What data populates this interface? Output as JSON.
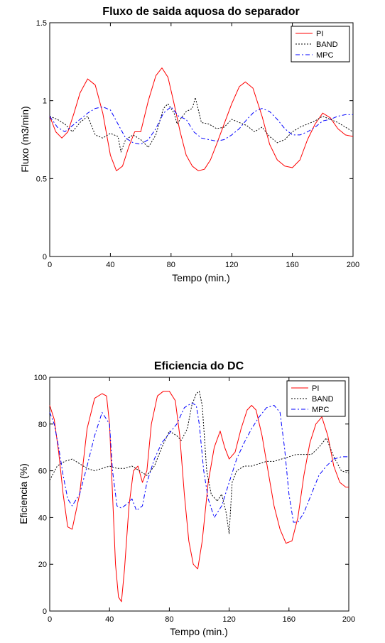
{
  "chart_data": [
    {
      "type": "line",
      "title": "Fluxo de saida aquosa do separador",
      "xlabel": "Tempo (min.)",
      "ylabel": "Fluxo (m3/min)",
      "xlim": [
        0,
        200
      ],
      "ylim": [
        0,
        1.5
      ],
      "xticks": [
        0,
        40,
        80,
        120,
        160,
        200
      ],
      "yticks": [
        0,
        0.5,
        1,
        1.5
      ],
      "xtick_labels": [
        "0",
        "40",
        "80",
        "120",
        "160",
        "200"
      ],
      "ytick_labels": [
        "0",
        "0.5",
        "1",
        "1.5"
      ],
      "grid": false,
      "legend": "top-right",
      "series": [
        {
          "name": "PI",
          "color": "#ff0000",
          "style": "solid",
          "x": [
            0,
            4,
            8,
            12,
            16,
            20,
            25,
            30,
            35,
            40,
            44,
            48,
            52,
            56,
            60,
            65,
            70,
            74,
            78,
            82,
            86,
            90,
            94,
            98,
            102,
            106,
            110,
            115,
            120,
            125,
            129,
            134,
            140,
            145,
            150,
            155,
            160,
            165,
            170,
            175,
            180,
            185,
            190,
            195,
            200
          ],
          "y": [
            0.9,
            0.8,
            0.76,
            0.8,
            0.92,
            1.05,
            1.14,
            1.1,
            0.92,
            0.65,
            0.55,
            0.58,
            0.7,
            0.8,
            0.8,
            1.0,
            1.16,
            1.21,
            1.15,
            0.98,
            0.8,
            0.65,
            0.58,
            0.55,
            0.56,
            0.62,
            0.72,
            0.85,
            0.98,
            1.09,
            1.12,
            1.08,
            0.9,
            0.72,
            0.62,
            0.58,
            0.57,
            0.62,
            0.75,
            0.85,
            0.92,
            0.89,
            0.82,
            0.78,
            0.77
          ]
        },
        {
          "name": "BAND",
          "color": "#000000",
          "style": "dotted",
          "x": [
            0,
            5,
            10,
            15,
            20,
            25,
            30,
            35,
            40,
            45,
            47,
            50,
            55,
            60,
            65,
            70,
            75,
            78,
            82,
            84,
            86,
            90,
            94,
            96,
            100,
            105,
            110,
            115,
            120,
            125,
            130,
            135,
            140,
            145,
            150,
            155,
            160,
            165,
            170,
            175,
            180,
            185,
            190,
            195,
            200
          ],
          "y": [
            0.9,
            0.88,
            0.85,
            0.8,
            0.86,
            0.9,
            0.78,
            0.76,
            0.79,
            0.77,
            0.67,
            0.75,
            0.78,
            0.75,
            0.7,
            0.78,
            0.95,
            0.98,
            0.92,
            0.85,
            0.88,
            0.93,
            0.95,
            1.02,
            0.86,
            0.85,
            0.82,
            0.83,
            0.88,
            0.86,
            0.84,
            0.8,
            0.83,
            0.77,
            0.73,
            0.75,
            0.8,
            0.83,
            0.85,
            0.87,
            0.9,
            0.88,
            0.86,
            0.83,
            0.8
          ]
        },
        {
          "name": "MPC",
          "color": "#0000ff",
          "style": "dashdot",
          "x": [
            0,
            5,
            10,
            15,
            20,
            25,
            30,
            35,
            40,
            45,
            50,
            55,
            60,
            65,
            70,
            75,
            80,
            85,
            90,
            95,
            100,
            105,
            110,
            115,
            120,
            125,
            130,
            135,
            140,
            145,
            150,
            155,
            160,
            165,
            170,
            175,
            180,
            185,
            190,
            195,
            200
          ],
          "y": [
            0.9,
            0.83,
            0.8,
            0.84,
            0.88,
            0.92,
            0.95,
            0.96,
            0.94,
            0.85,
            0.76,
            0.73,
            0.72,
            0.75,
            0.82,
            0.92,
            0.96,
            0.9,
            0.88,
            0.8,
            0.76,
            0.75,
            0.74,
            0.75,
            0.78,
            0.82,
            0.88,
            0.93,
            0.95,
            0.93,
            0.88,
            0.82,
            0.78,
            0.78,
            0.8,
            0.83,
            0.87,
            0.88,
            0.9,
            0.91,
            0.91
          ]
        }
      ]
    },
    {
      "type": "line",
      "title": "Eficiencia do DC",
      "xlabel": "Tempo (min.)",
      "ylabel": "Eficiencia (%)",
      "xlim": [
        0,
        200
      ],
      "ylim": [
        0,
        100
      ],
      "xticks": [
        0,
        40,
        80,
        120,
        160,
        200
      ],
      "yticks": [
        0,
        20,
        40,
        60,
        80,
        100
      ],
      "xtick_labels": [
        "0",
        "40",
        "80",
        "120",
        "160",
        "200"
      ],
      "ytick_labels": [
        "0",
        "20",
        "40",
        "60",
        "80",
        "100"
      ],
      "grid": false,
      "legend": "top-right",
      "series": [
        {
          "name": "PI",
          "color": "#ff0000",
          "style": "solid",
          "x": [
            0,
            3,
            6,
            9,
            12,
            15,
            20,
            25,
            30,
            35,
            38,
            40,
            42,
            44,
            46,
            48,
            50,
            53,
            56,
            59,
            62,
            65,
            68,
            72,
            76,
            80,
            84,
            87,
            90,
            93,
            96,
            99,
            102,
            106,
            110,
            114,
            117,
            120,
            124,
            128,
            132,
            135,
            138,
            142,
            146,
            150,
            154,
            158,
            162,
            166,
            170,
            174,
            178,
            182,
            186,
            190,
            194,
            198,
            200
          ],
          "y": [
            88,
            82,
            68,
            50,
            36,
            35,
            50,
            78,
            91,
            93,
            92,
            80,
            50,
            20,
            6,
            4,
            18,
            45,
            60,
            62,
            55,
            60,
            80,
            92,
            94,
            94,
            90,
            75,
            50,
            30,
            20,
            18,
            30,
            55,
            70,
            77,
            70,
            65,
            68,
            78,
            86,
            88,
            86,
            75,
            60,
            45,
            35,
            29,
            30,
            40,
            58,
            72,
            80,
            83,
            75,
            62,
            55,
            53,
            53
          ]
        },
        {
          "name": "BAND",
          "color": "#000000",
          "style": "dotted",
          "x": [
            0,
            5,
            10,
            15,
            20,
            25,
            30,
            35,
            40,
            45,
            50,
            55,
            60,
            65,
            70,
            75,
            80,
            85,
            88,
            92,
            95,
            98,
            100,
            102,
            105,
            108,
            112,
            115,
            118,
            120,
            122,
            125,
            130,
            135,
            140,
            145,
            150,
            155,
            160,
            165,
            170,
            175,
            180,
            185,
            190,
            195,
            200
          ],
          "y": [
            56,
            62,
            64,
            65,
            63,
            61,
            60,
            61,
            62,
            61,
            61,
            62,
            60,
            58,
            62,
            70,
            77,
            75,
            73,
            78,
            88,
            93,
            94,
            88,
            60,
            50,
            47,
            50,
            42,
            33,
            55,
            60,
            62,
            62,
            63,
            64,
            64,
            65,
            66,
            67,
            67,
            67,
            70,
            74,
            66,
            60,
            59
          ]
        },
        {
          "name": "MPC",
          "color": "#0000ff",
          "style": "dashdot",
          "x": [
            0,
            3,
            6,
            9,
            12,
            15,
            20,
            25,
            30,
            35,
            40,
            42,
            45,
            48,
            52,
            55,
            58,
            62,
            65,
            70,
            75,
            80,
            85,
            90,
            95,
            98,
            100,
            103,
            106,
            110,
            115,
            120,
            125,
            130,
            135,
            140,
            145,
            150,
            154,
            157,
            160,
            163,
            166,
            170,
            175,
            180,
            185,
            190,
            195,
            200
          ],
          "y": [
            85,
            80,
            70,
            58,
            48,
            45,
            50,
            62,
            75,
            85,
            80,
            60,
            45,
            44,
            46,
            48,
            43,
            45,
            55,
            65,
            72,
            76,
            80,
            87,
            89,
            88,
            80,
            60,
            48,
            40,
            45,
            55,
            65,
            72,
            78,
            83,
            87,
            88,
            85,
            70,
            50,
            38,
            38,
            42,
            50,
            58,
            62,
            65,
            66,
            66
          ]
        }
      ]
    }
  ]
}
